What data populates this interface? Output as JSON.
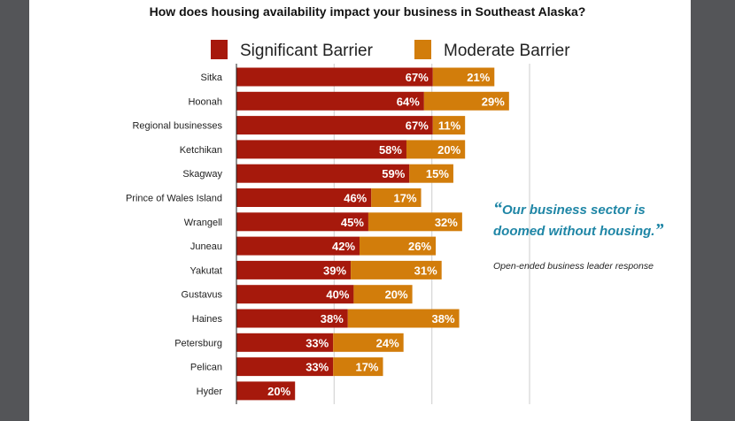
{
  "chart_data": {
    "type": "bar",
    "orientation": "horizontal",
    "stacked": true,
    "title": "How does housing availability impact your business in Southeast Alaska?",
    "categories": [
      "Sitka",
      "Hoonah",
      "Regional businesses",
      "Ketchikan",
      "Skagway",
      "Prince of Wales Island",
      "Wrangell",
      "Juneau",
      "Yakutat",
      "Gustavus",
      "Haines",
      "Petersburg",
      "Pelican",
      "Hyder"
    ],
    "series": [
      {
        "name": "Significant Barrier",
        "color": "#a6190c",
        "values": [
          67,
          64,
          67,
          58,
          59,
          46,
          45,
          42,
          39,
          40,
          38,
          33,
          33,
          20
        ]
      },
      {
        "name": "Moderate Barrier",
        "color": "#d27d0b",
        "values": [
          21,
          29,
          11,
          20,
          15,
          17,
          32,
          26,
          31,
          20,
          38,
          24,
          17,
          0
        ]
      }
    ],
    "xlim": [
      0,
      100
    ],
    "grid": true,
    "legend": "top",
    "unit": "%"
  },
  "quote": {
    "text": "Our business sector is doomed without housing.",
    "open": "“",
    "close": "”",
    "attribution": "Open-ended business leader response",
    "color": "#1f86a6"
  }
}
